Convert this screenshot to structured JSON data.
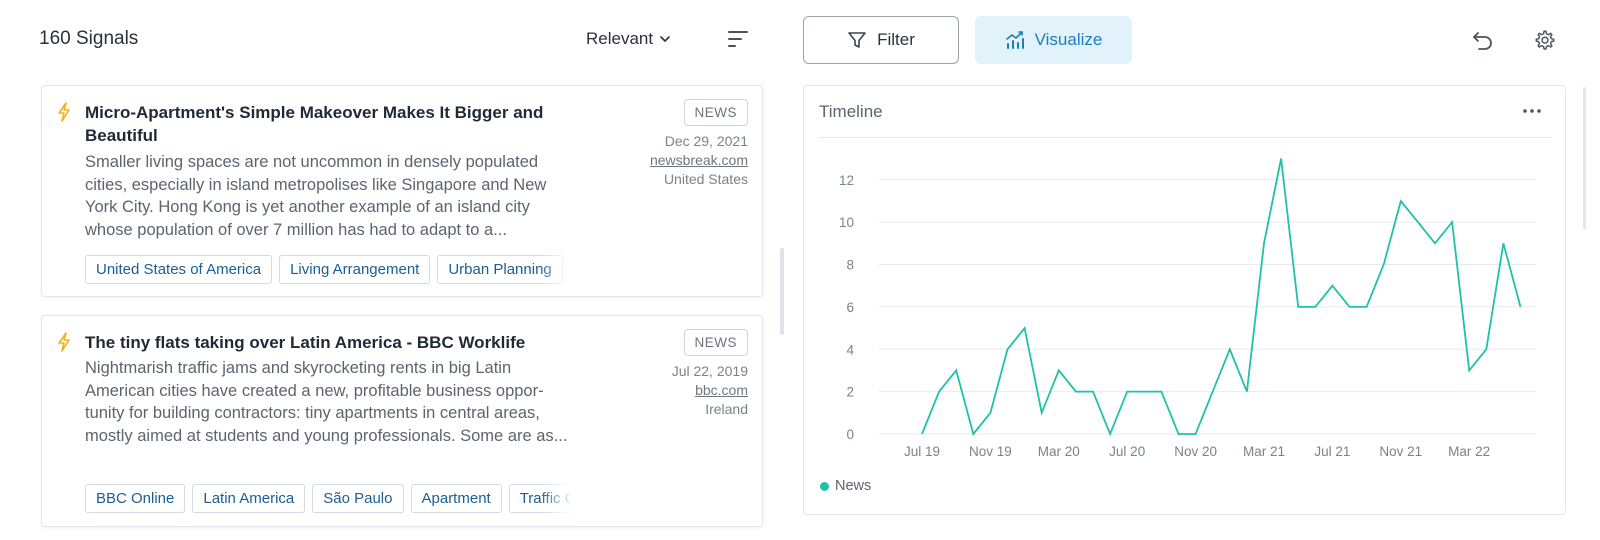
{
  "header": {
    "signals_count": "160 Signals",
    "sort_label": "Relevant",
    "filter_label": "Filter",
    "visualize_label": "Visualize"
  },
  "cards": [
    {
      "title": "Micro-Apartment's Simple Makeover Makes It Bigger and Beautiful",
      "description": "Smaller living spaces are not uncommon in densely populated cities, especially in island metropolises like Singapore and New York City. Hong Kong is yet another example of an island city whose population of over 7 million has had to adapt to a...",
      "badge": "NEWS",
      "date": "Dec 29, 2021",
      "source": "newsbreak.com",
      "country": "United States",
      "tags": [
        "United States of America",
        "Living Arrangement",
        "Urban Planning"
      ]
    },
    {
      "title": "The tiny flats taking over Latin America - BBC Worklife",
      "description": "Nightmarish traffic jams and skyrocketing rents in big Latin American cities have created a new, profitable business oppor-tunity for building contractors: tiny apartments in central areas, mostly aimed at students and young professionals. Some are as...",
      "badge": "NEWS",
      "date": "Jul 22, 2019",
      "source": "bbc.com",
      "country": "Ireland",
      "tags": [
        "BBC Online",
        "Latin America",
        "São Paulo",
        "Apartment",
        "Traffic C"
      ]
    }
  ],
  "timeline": {
    "title": "Timeline"
  },
  "colors": {
    "accent": "#1ec1aa",
    "visualize_bg": "#e1f2fb",
    "visualize_text": "#1c7fb8",
    "bolt": "#f2b019"
  },
  "chart_data": {
    "type": "line",
    "title": "",
    "xlabel": "",
    "ylabel": "",
    "x_tick_labels": [
      "Jul 19",
      "Nov 19",
      "Mar 20",
      "Jul 20",
      "Nov 20",
      "Mar 21",
      "Jul 21",
      "Nov 21",
      "Mar 22"
    ],
    "y_ticks": [
      0,
      2,
      4,
      6,
      8,
      10,
      12
    ],
    "ylim": [
      0,
      13.5
    ],
    "grid": true,
    "legend": "bottom-left",
    "series": [
      {
        "name": "News",
        "x": [
          "Jul 19",
          "Aug 19",
          "Sep 19",
          "Oct 19",
          "Nov 19",
          "Dec 19",
          "Jan 20",
          "Feb 20",
          "Mar 20",
          "Apr 20",
          "May 20",
          "Jun 20",
          "Jul 20",
          "Aug 20",
          "Sep 20",
          "Oct 20",
          "Nov 20",
          "Dec 20",
          "Jan 21",
          "Feb 21",
          "Mar 21",
          "Apr 21",
          "May 21",
          "Jun 21",
          "Jul 21",
          "Aug 21",
          "Sep 21",
          "Oct 21",
          "Nov 21",
          "Dec 21",
          "Jan 22",
          "Feb 22",
          "Mar 22",
          "Apr 22",
          "May 22",
          "Jun 22"
        ],
        "values": [
          0,
          2,
          3,
          0,
          1,
          4,
          5,
          1,
          3,
          2,
          2,
          0,
          2,
          2,
          2,
          0,
          0,
          2,
          4,
          2,
          9,
          13,
          6,
          6,
          7,
          6,
          6,
          8,
          11,
          10,
          9,
          10,
          3,
          4,
          9,
          6
        ]
      }
    ]
  }
}
